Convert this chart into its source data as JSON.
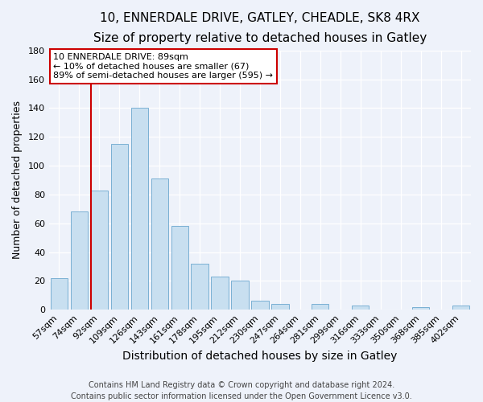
{
  "title": "10, ENNERDALE DRIVE, GATLEY, CHEADLE, SK8 4RX",
  "subtitle": "Size of property relative to detached houses in Gatley",
  "xlabel": "Distribution of detached houses by size in Gatley",
  "ylabel": "Number of detached properties",
  "bar_labels": [
    "57sqm",
    "74sqm",
    "92sqm",
    "109sqm",
    "126sqm",
    "143sqm",
    "161sqm",
    "178sqm",
    "195sqm",
    "212sqm",
    "230sqm",
    "247sqm",
    "264sqm",
    "281sqm",
    "299sqm",
    "316sqm",
    "333sqm",
    "350sqm",
    "368sqm",
    "385sqm",
    "402sqm"
  ],
  "bar_values": [
    22,
    68,
    83,
    115,
    140,
    91,
    58,
    32,
    23,
    20,
    6,
    4,
    0,
    4,
    0,
    3,
    0,
    0,
    2,
    0,
    3
  ],
  "bar_color": "#c8dff0",
  "bar_edge_color": "#7ab0d4",
  "vline_x_idx": 2,
  "vline_color": "#cc0000",
  "ylim": [
    0,
    180
  ],
  "yticks": [
    0,
    20,
    40,
    60,
    80,
    100,
    120,
    140,
    160,
    180
  ],
  "annotation_title": "10 ENNERDALE DRIVE: 89sqm",
  "annotation_line1": "← 10% of detached houses are smaller (67)",
  "annotation_line2": "89% of semi-detached houses are larger (595) →",
  "footer_line1": "Contains HM Land Registry data © Crown copyright and database right 2024.",
  "footer_line2": "Contains public sector information licensed under the Open Government Licence v3.0.",
  "title_fontsize": 11,
  "subtitle_fontsize": 10,
  "xlabel_fontsize": 10,
  "ylabel_fontsize": 9,
  "footer_fontsize": 7,
  "tick_fontsize": 8,
  "background_color": "#eef2fa"
}
